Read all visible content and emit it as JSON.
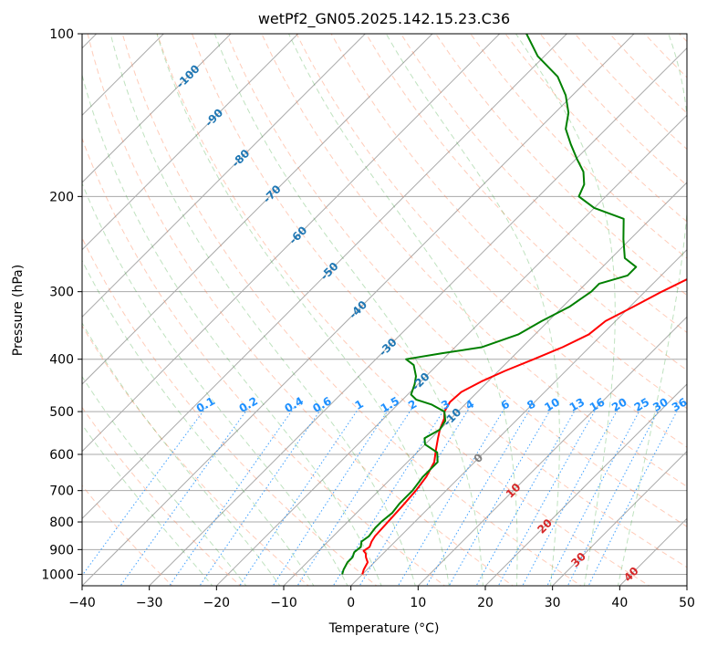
{
  "chart_data": {
    "type": "skew-t",
    "title": "wetPf2_GN05.2025.142.15.23.C36",
    "xlabel": "Temperature (°C)",
    "ylabel": "Pressure (hPa)",
    "xlim": [
      -40,
      50
    ],
    "ylim": [
      1050,
      100
    ],
    "y_scale": "log",
    "x_ticks": [
      -40,
      -30,
      -20,
      -10,
      0,
      10,
      20,
      30,
      40,
      50
    ],
    "x_tick_labels": [
      "−40",
      "−30",
      "−20",
      "−10",
      "0",
      "10",
      "20",
      "30",
      "40",
      "50"
    ],
    "y_ticks": [
      100,
      200,
      300,
      400,
      500,
      600,
      700,
      800,
      900,
      1000
    ],
    "y_tick_labels": [
      "100",
      "200",
      "300",
      "400",
      "500",
      "600",
      "700",
      "800",
      "900",
      "1000"
    ],
    "grid": true,
    "colors": {
      "temperature": "#ff0000",
      "dewpoint": "#008000",
      "isotherm_grid": "#a9a9a9",
      "dry_adiabat": "#ff7f50",
      "moist_adiabat": "#2ca02c",
      "mixing_ratio": "#1e90ff",
      "isotherm_label_negative": "#1f77b4",
      "isotherm_label_positive": "#d62728",
      "isotherm_label_zero": "#808080",
      "mixing_label": "#1e90ff"
    },
    "series": [
      {
        "name": "temperature",
        "points": [
          [
            0.0,
            1000
          ],
          [
            -0.5,
            980
          ],
          [
            -1.0,
            950
          ],
          [
            -2.0,
            930
          ],
          [
            -2.6,
            915
          ],
          [
            -3.3,
            905
          ],
          [
            -3.0,
            890
          ],
          [
            -3.5,
            870
          ],
          [
            -3.8,
            850
          ],
          [
            -4.0,
            800
          ],
          [
            -4.2,
            750
          ],
          [
            -4.5,
            700
          ],
          [
            -5.0,
            660
          ],
          [
            -6.0,
            620
          ],
          [
            -7.5,
            590
          ],
          [
            -9.0,
            560
          ],
          [
            -10.0,
            540
          ],
          [
            -11.0,
            515
          ],
          [
            -12.0,
            500
          ],
          [
            -12.6,
            480
          ],
          [
            -12.4,
            460
          ],
          [
            -11.0,
            440
          ],
          [
            -9.0,
            420
          ],
          [
            -6.5,
            400
          ],
          [
            -4.0,
            380
          ],
          [
            -2.0,
            360
          ],
          [
            -1.5,
            340
          ],
          [
            0.5,
            320
          ],
          [
            2.5,
            300
          ],
          [
            5.0,
            280
          ],
          [
            7.0,
            260
          ],
          [
            9.5,
            240
          ],
          [
            12.0,
            220
          ],
          [
            15.0,
            200
          ],
          [
            17.5,
            180
          ],
          [
            19.0,
            170
          ],
          [
            21.0,
            160
          ],
          [
            23.0,
            150
          ],
          [
            26.0,
            140
          ],
          [
            27.0,
            130
          ],
          [
            28.5,
            120
          ],
          [
            31.0,
            110
          ],
          [
            33.0,
            100
          ]
        ]
      },
      {
        "name": "dewpoint",
        "points": [
          [
            -3.0,
            1000
          ],
          [
            -3.5,
            980
          ],
          [
            -4.0,
            950
          ],
          [
            -4.0,
            930
          ],
          [
            -4.5,
            910
          ],
          [
            -4.3,
            890
          ],
          [
            -5.0,
            870
          ],
          [
            -4.7,
            850
          ],
          [
            -5.0,
            820
          ],
          [
            -5.0,
            800
          ],
          [
            -4.7,
            770
          ],
          [
            -5.0,
            740
          ],
          [
            -5.0,
            700
          ],
          [
            -5.5,
            660
          ],
          [
            -5.5,
            620
          ],
          [
            -7.0,
            595
          ],
          [
            -10.0,
            575
          ],
          [
            -11.0,
            560
          ],
          [
            -10.0,
            540
          ],
          [
            -10.5,
            520
          ],
          [
            -12.0,
            500
          ],
          [
            -15.0,
            485
          ],
          [
            -18.0,
            475
          ],
          [
            -19.5,
            465
          ],
          [
            -20.5,
            445
          ],
          [
            -21.5,
            430
          ],
          [
            -23.5,
            410
          ],
          [
            -25.5,
            400
          ],
          [
            -21.0,
            390
          ],
          [
            -16.0,
            380
          ],
          [
            -12.5,
            360
          ],
          [
            -11.0,
            340
          ],
          [
            -9.0,
            320
          ],
          [
            -8.0,
            300
          ],
          [
            -8.0,
            290
          ],
          [
            -5.0,
            280
          ],
          [
            -5.0,
            270
          ],
          [
            -8.0,
            260
          ],
          [
            -11.0,
            240
          ],
          [
            -14.0,
            220
          ],
          [
            -20.0,
            210
          ],
          [
            -24.0,
            200
          ],
          [
            -25.0,
            190
          ],
          [
            -27.0,
            180
          ],
          [
            -30.0,
            170
          ],
          [
            -33.0,
            160
          ],
          [
            -36.0,
            150
          ],
          [
            -38.0,
            140
          ],
          [
            -41.0,
            130
          ],
          [
            -45.0,
            120
          ],
          [
            -51.0,
            110
          ],
          [
            -56.0,
            100
          ]
        ]
      }
    ],
    "isotherm_labels": [
      {
        "text": "-100",
        "t": -100,
        "p": 120
      },
      {
        "text": "-90",
        "t": -90,
        "p": 143
      },
      {
        "text": "-80",
        "t": -80,
        "p": 170
      },
      {
        "text": "-70",
        "t": -70,
        "p": 198
      },
      {
        "text": "-60",
        "t": -60,
        "p": 236
      },
      {
        "text": "-50",
        "t": -50,
        "p": 275
      },
      {
        "text": "-40",
        "t": -40,
        "p": 324
      },
      {
        "text": "-30",
        "t": -30,
        "p": 380
      },
      {
        "text": "-20",
        "t": -20,
        "p": 440
      },
      {
        "text": "-10",
        "t": -10,
        "p": 512
      },
      {
        "text": "0",
        "t": 0,
        "p": 610
      },
      {
        "text": "10",
        "t": 10,
        "p": 700
      },
      {
        "text": "20",
        "t": 20,
        "p": 815
      },
      {
        "text": "30",
        "t": 30,
        "p": 940
      },
      {
        "text": "40",
        "t": 40,
        "p": 1000
      }
    ],
    "mixing_ratio_labels": [
      {
        "text": "0.1",
        "w": 0.1
      },
      {
        "text": "0.2",
        "w": 0.2
      },
      {
        "text": "0.4",
        "w": 0.4
      },
      {
        "text": "0.6",
        "w": 0.6
      },
      {
        "text": "1",
        "w": 1
      },
      {
        "text": "1.5",
        "w": 1.5
      },
      {
        "text": "2",
        "w": 2
      },
      {
        "text": "3",
        "w": 3
      },
      {
        "text": "4",
        "w": 4
      },
      {
        "text": "6",
        "w": 6
      },
      {
        "text": "8",
        "w": 8
      },
      {
        "text": "10",
        "w": 10
      },
      {
        "text": "13",
        "w": 13
      },
      {
        "text": "16",
        "w": 16
      },
      {
        "text": "20",
        "w": 20
      },
      {
        "text": "25",
        "w": 25
      },
      {
        "text": "30",
        "w": 30
      },
      {
        "text": "36",
        "w": 36
      }
    ]
  }
}
